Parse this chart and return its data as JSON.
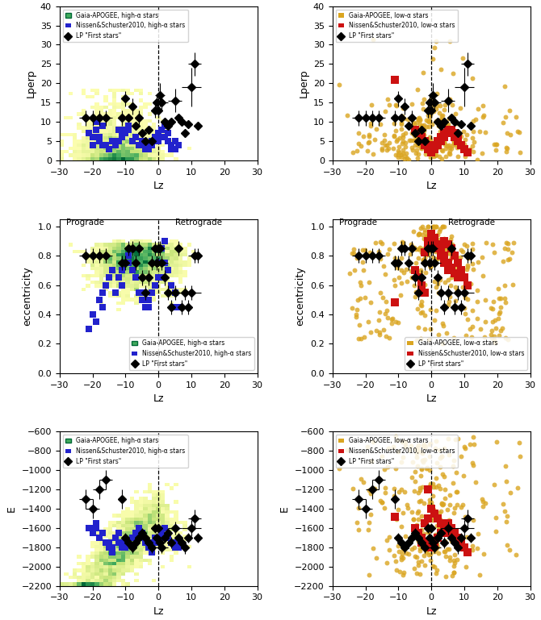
{
  "xlim": [
    -30,
    30
  ],
  "lperp_ylim": [
    0,
    40
  ],
  "ecc_ylim": [
    0.0,
    1.05
  ],
  "E_ylim": [
    -2200,
    -600
  ],
  "xlabel": "Lz",
  "ylabel_lperp": "Lperp",
  "ylabel_ecc": "eccentricity",
  "ylabel_E": "E",
  "legend_high_alpha_gaia": "Gaia-APOGEE, high-α stars",
  "legend_high_alpha_ns": "Nissen&Schuster2010, high-α stars",
  "legend_lp": "LP \"First stars\"",
  "legend_low_alpha_gaia": "Gaia-APOGEE, low-α stars",
  "legend_low_alpha_ns": "Nissen&Schuster2010, low-α stars",
  "ns_high_alpha_color": "#2222cc",
  "ns_low_alpha_color": "#cc1111",
  "lp_color": "#000000",
  "gaia_low_alpha_color": "#DAA520"
}
